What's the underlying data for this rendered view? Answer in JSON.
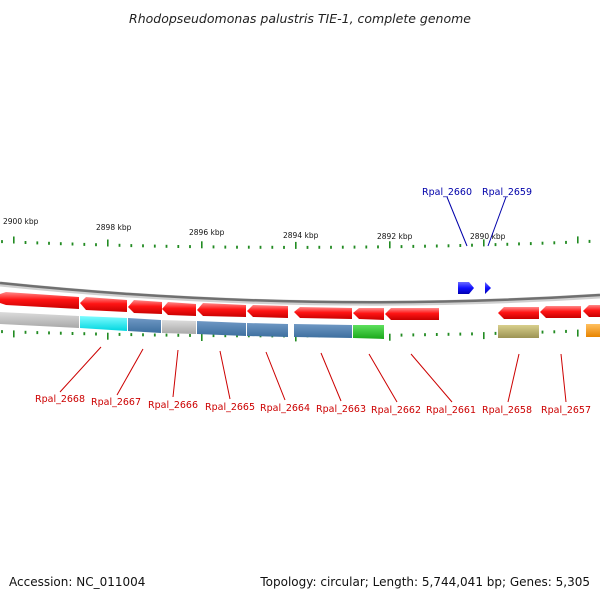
{
  "title": "Rhodopseudomonas palustris TIE-1, complete genome",
  "footer": {
    "accession": "Accession: NC_011004",
    "summary": "Topology: circular; Length: 5,744,041 bp; Genes: 5,305"
  },
  "colors": {
    "forward_gene": "#ff0000",
    "reverse_gene": "#0000ff",
    "tick": "#228b22",
    "backbone": "#808080",
    "label_below": "#cc0000",
    "label_above": "#0000aa"
  },
  "scale_labels": [
    "2900 kbp",
    "2898 kbp",
    "2896 kbp",
    "2894 kbp",
    "2892 kbp",
    "2890 kbp"
  ],
  "genes_below": [
    {
      "label": "Rpal_2668"
    },
    {
      "label": "Rpal_2667"
    },
    {
      "label": "Rpal_2666"
    },
    {
      "label": "Rpal_2665"
    },
    {
      "label": "Rpal_2664"
    },
    {
      "label": "Rpal_2663"
    },
    {
      "label": "Rpal_2662"
    },
    {
      "label": "Rpal_2661"
    },
    {
      "label": "Rpal_2658"
    },
    {
      "label": "Rpal_2657"
    }
  ],
  "genes_above": [
    {
      "label": "Rpal_2660"
    },
    {
      "label": "Rpal_2659"
    }
  ]
}
